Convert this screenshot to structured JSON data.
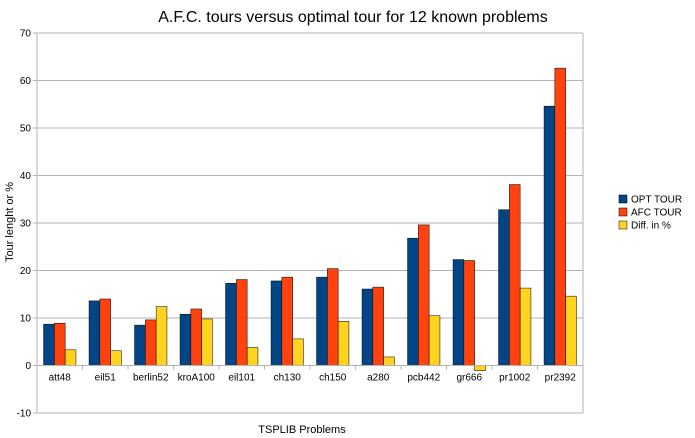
{
  "chart_data": {
    "type": "bar",
    "title": "A.F.C. tours versus optimal tour for 12 known problems",
    "xlabel": "TSPLIB Problems",
    "ylabel": "Tour lenght or %",
    "ylim": [
      -10,
      70
    ],
    "yticks": [
      -10,
      0,
      10,
      20,
      30,
      40,
      50,
      60,
      70
    ],
    "grid": true,
    "legend_position": "right",
    "categories": [
      "att48",
      "eil51",
      "berlin52",
      "kroA100",
      "eil101",
      "ch130",
      "ch150",
      "a280",
      "pcb442",
      "gr666",
      "pr1002",
      "pr2392"
    ],
    "series": [
      {
        "name": "OPT TOUR",
        "color": "#004586",
        "values": [
          8.7,
          13.6,
          8.5,
          10.8,
          17.3,
          17.8,
          18.6,
          16.1,
          26.8,
          22.3,
          32.8,
          54.6
        ]
      },
      {
        "name": "AFC TOUR",
        "color": "#ff420e",
        "values": [
          8.9,
          14.0,
          9.6,
          11.9,
          18.1,
          18.6,
          20.4,
          16.5,
          29.6,
          22.1,
          38.1,
          62.6
        ]
      },
      {
        "name": "Diff. in %",
        "color": "#ffd320",
        "values": [
          3.3,
          3.1,
          12.4,
          9.8,
          3.8,
          5.6,
          9.3,
          1.8,
          10.5,
          -1.1,
          16.3,
          14.6
        ]
      }
    ]
  }
}
